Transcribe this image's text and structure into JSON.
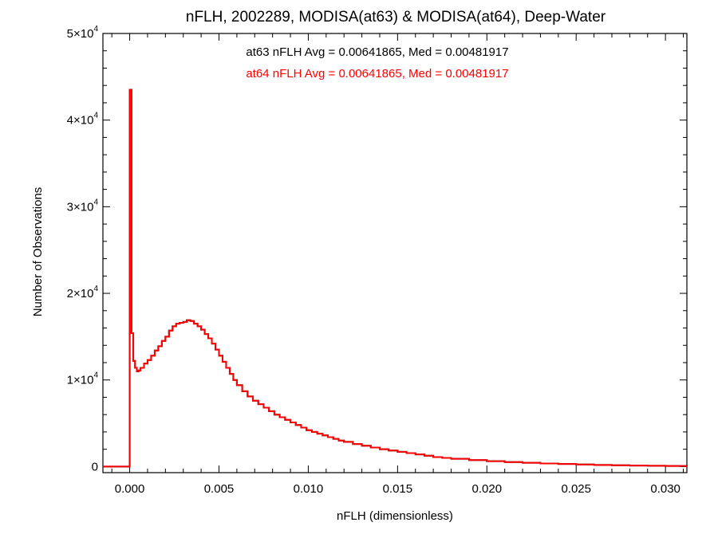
{
  "chart_data": {
    "type": "line",
    "title": "nFLH, 2002289, MODISA(at63) & MODISA(at64), Deep-Water",
    "xlabel": "nFLH (dimensionless)",
    "ylabel": "Number of Observations",
    "xlim": [
      -0.0015,
      0.0312
    ],
    "ylim": [
      -700,
      50000
    ],
    "x_ticks": [
      {
        "value": 0.0,
        "label": "0.000"
      },
      {
        "value": 0.005,
        "label": "0.005"
      },
      {
        "value": 0.01,
        "label": "0.010"
      },
      {
        "value": 0.015,
        "label": "0.015"
      },
      {
        "value": 0.02,
        "label": "0.020"
      },
      {
        "value": 0.025,
        "label": "0.025"
      },
      {
        "value": 0.03,
        "label": "0.030"
      }
    ],
    "y_ticks": [
      {
        "value": 0,
        "label": "0",
        "exp": ""
      },
      {
        "value": 10000,
        "label": "1×10",
        "exp": "4"
      },
      {
        "value": 20000,
        "label": "2×10",
        "exp": "4"
      },
      {
        "value": 30000,
        "label": "3×10",
        "exp": "4"
      },
      {
        "value": 40000,
        "label": "4×10",
        "exp": "4"
      },
      {
        "value": 50000,
        "label": "5×10",
        "exp": "4"
      }
    ],
    "grid": false,
    "annotations": [
      {
        "text": "at63 nFLH Avg = 0.00641865, Med = 0.00481917",
        "color": "#000000"
      },
      {
        "text": "at64 nFLH Avg = 0.00641865, Med = 0.00481917",
        "color": "#ff0000"
      }
    ],
    "series_style": "step",
    "series": [
      {
        "color": "#000000",
        "x": [
          -0.0015,
          -5e-05,
          0.0,
          0.0001,
          0.0002,
          0.0003,
          0.0004,
          0.0005,
          0.0006,
          0.0008,
          0.001,
          0.0012,
          0.0014,
          0.0016,
          0.0018,
          0.002,
          0.0022,
          0.0024,
          0.0026,
          0.0028,
          0.003,
          0.0032,
          0.0034,
          0.0036,
          0.0038,
          0.004,
          0.0042,
          0.0044,
          0.0046,
          0.0048,
          0.005,
          0.0052,
          0.0054,
          0.0056,
          0.0058,
          0.006,
          0.0063,
          0.0066,
          0.0069,
          0.0072,
          0.0075,
          0.0078,
          0.0081,
          0.0084,
          0.0087,
          0.009,
          0.0093,
          0.0096,
          0.0099,
          0.0102,
          0.0105,
          0.0108,
          0.0111,
          0.0114,
          0.0117,
          0.012,
          0.0125,
          0.013,
          0.0135,
          0.014,
          0.0145,
          0.015,
          0.0155,
          0.016,
          0.0165,
          0.017,
          0.0175,
          0.018,
          0.019,
          0.02,
          0.021,
          0.022,
          0.023,
          0.024,
          0.025,
          0.026,
          0.027,
          0.028,
          0.029,
          0.03,
          0.0312
        ],
        "values": [
          0,
          0,
          43500,
          15400,
          12200,
          11400,
          11000,
          11100,
          11400,
          11900,
          12300,
          12800,
          13400,
          13900,
          14500,
          15000,
          15700,
          16200,
          16500,
          16600,
          16700,
          16900,
          16800,
          16500,
          16200,
          15800,
          15300,
          14800,
          14200,
          13500,
          12800,
          12100,
          11400,
          10700,
          10000,
          9400,
          8700,
          8100,
          7600,
          7200,
          6800,
          6400,
          6000,
          5700,
          5400,
          5100,
          4800,
          4500,
          4200,
          4000,
          3800,
          3600,
          3400,
          3200,
          3000,
          2850,
          2600,
          2400,
          2200,
          2000,
          1850,
          1700,
          1550,
          1400,
          1250,
          1100,
          1000,
          900,
          750,
          620,
          520,
          440,
          360,
          300,
          240,
          190,
          150,
          120,
          90,
          70,
          50
        ]
      },
      {
        "color": "#ff0000",
        "x": [
          -0.0015,
          -5e-05,
          0.0,
          0.0001,
          0.0002,
          0.0003,
          0.0004,
          0.0005,
          0.0006,
          0.0008,
          0.001,
          0.0012,
          0.0014,
          0.0016,
          0.0018,
          0.002,
          0.0022,
          0.0024,
          0.0026,
          0.0028,
          0.003,
          0.0032,
          0.0034,
          0.0036,
          0.0038,
          0.004,
          0.0042,
          0.0044,
          0.0046,
          0.0048,
          0.005,
          0.0052,
          0.0054,
          0.0056,
          0.0058,
          0.006,
          0.0063,
          0.0066,
          0.0069,
          0.0072,
          0.0075,
          0.0078,
          0.0081,
          0.0084,
          0.0087,
          0.009,
          0.0093,
          0.0096,
          0.0099,
          0.0102,
          0.0105,
          0.0108,
          0.0111,
          0.0114,
          0.0117,
          0.012,
          0.0125,
          0.013,
          0.0135,
          0.014,
          0.0145,
          0.015,
          0.0155,
          0.016,
          0.0165,
          0.017,
          0.0175,
          0.018,
          0.019,
          0.02,
          0.021,
          0.022,
          0.023,
          0.024,
          0.025,
          0.026,
          0.027,
          0.028,
          0.029,
          0.03,
          0.0312
        ],
        "values": [
          0,
          0,
          43500,
          15400,
          12200,
          11400,
          11000,
          11100,
          11400,
          11900,
          12300,
          12800,
          13400,
          13900,
          14500,
          15000,
          15700,
          16200,
          16500,
          16600,
          16700,
          16900,
          16800,
          16500,
          16200,
          15800,
          15300,
          14800,
          14200,
          13500,
          12800,
          12100,
          11400,
          10700,
          10000,
          9400,
          8700,
          8100,
          7600,
          7200,
          6800,
          6400,
          6000,
          5700,
          5400,
          5100,
          4800,
          4500,
          4200,
          4000,
          3800,
          3600,
          3400,
          3200,
          3000,
          2850,
          2600,
          2400,
          2200,
          2000,
          1850,
          1700,
          1550,
          1400,
          1250,
          1100,
          1000,
          900,
          750,
          620,
          520,
          440,
          360,
          300,
          240,
          190,
          150,
          120,
          90,
          70,
          50
        ]
      }
    ]
  }
}
